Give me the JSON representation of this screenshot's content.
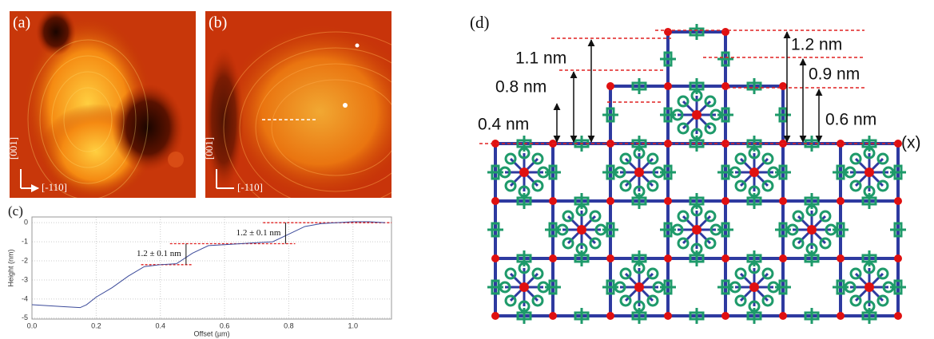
{
  "panels": {
    "a": {
      "label": "(a)",
      "axis_v": "[001]",
      "axis_h": "[-110]"
    },
    "b": {
      "label": "(b)",
      "axis_v": "[001]",
      "axis_h": "[-110]"
    },
    "c": {
      "label": "(c)"
    },
    "d": {
      "label": "(d)"
    }
  },
  "structure": {
    "labels": [
      "1.1 nm",
      "0.8 nm",
      "0.4 nm",
      "1.2 nm",
      "0.9 nm",
      "0.6 nm"
    ],
    "axis": "(x)"
  },
  "chart_data": {
    "type": "line",
    "x_label": "Offset (µm)",
    "y_label": "Height (nm)",
    "x": [
      0,
      0.05,
      0.1,
      0.15,
      0.17,
      0.2,
      0.25,
      0.3,
      0.35,
      0.4,
      0.45,
      0.5,
      0.55,
      0.6,
      0.65,
      0.7,
      0.75,
      0.8,
      0.85,
      0.9,
      0.95,
      1.0,
      1.05,
      1.1
    ],
    "values": [
      -4.3,
      -4.35,
      -4.4,
      -4.45,
      -4.3,
      -3.9,
      -3.4,
      -2.8,
      -2.3,
      -2.2,
      -2.15,
      -1.6,
      -1.2,
      -1.15,
      -1.1,
      -1.05,
      -1.0,
      -0.6,
      -0.2,
      -0.05,
      0.0,
      0.05,
      0.05,
      0.0
    ],
    "color": "#3b4a9a",
    "xlim": [
      0,
      1.12
    ],
    "xticks": [
      {
        "value": 0,
        "label": "0.0"
      },
      0.2,
      0.4,
      0.6,
      0.8,
      {
        "value": 1,
        "label": "1.0"
      }
    ],
    "ylim": [
      -5.05,
      0.3
    ],
    "yticks": [
      0,
      -1,
      -2,
      -3,
      -4,
      -5
    ],
    "grid": true,
    "level_color": "#e02020",
    "levels": [
      {
        "y": -2.2,
        "x": [
          0.34,
          0.5
        ]
      },
      {
        "y": -1.1,
        "x": [
          0.43,
          0.82
        ]
      },
      {
        "y": 0,
        "x": [
          0.72,
          1.12
        ]
      }
    ],
    "annotations": [
      {
        "text": "1.2 ± 0.1 nm",
        "x": 0.48,
        "from": -2.2,
        "to": -1.1
      },
      {
        "text": "1.2 ± 0.1 nm",
        "x": 0.79,
        "from": -1.1,
        "to": 0
      }
    ]
  }
}
